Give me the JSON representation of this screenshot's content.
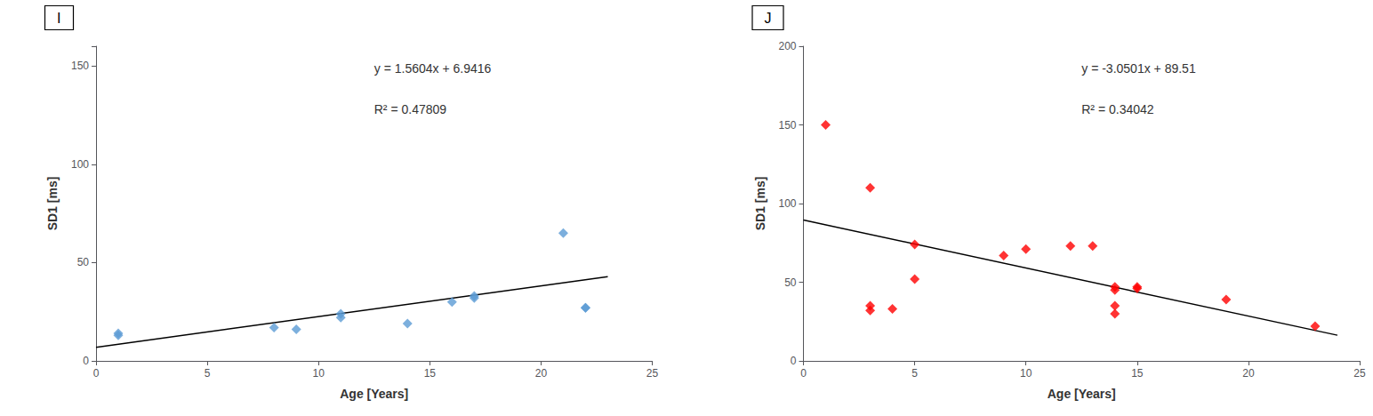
{
  "chart_data": [
    {
      "type": "scatter",
      "title": "I",
      "xlabel": "Age [Years]",
      "ylabel": "SD1 [ms]",
      "annotations": [
        "y = 1.5604x + 6.9416",
        "R² = 0.47809"
      ],
      "series": [
        {
          "type": "scatter",
          "color": "#5B9BD5",
          "marker": "diamond",
          "x": [
            1,
            1,
            8,
            9,
            11,
            11,
            14,
            16,
            17,
            17,
            21,
            22,
            22
          ],
          "values": [
            13,
            14,
            17,
            16,
            22,
            24,
            19,
            30,
            32,
            33,
            65,
            27,
            27
          ]
        },
        {
          "type": "line",
          "color": "black",
          "line_style": "solid",
          "x": [
            0,
            23
          ],
          "values": [
            6.9416,
            42.8308
          ]
        }
      ],
      "xlim": [
        0,
        25
      ],
      "ylim": [
        0,
        160
      ],
      "xticks": [
        0,
        5,
        10,
        15,
        20,
        25
      ],
      "yticks": [
        0,
        50,
        100,
        150
      ],
      "grid": false
    },
    {
      "type": "scatter",
      "title": "J",
      "xlabel": "Age [Years]",
      "ylabel": "SD1 [ms]",
      "annotations": [
        "y = -3.0501x + 89.51",
        "R² = 0.34042"
      ],
      "series": [
        {
          "type": "scatter",
          "color": "#FF0000",
          "marker": "diamond",
          "x": [
            1,
            3,
            3,
            3,
            4,
            5,
            5,
            9,
            10,
            12,
            13,
            14,
            14,
            14,
            14,
            15,
            15,
            19,
            23
          ],
          "values": [
            150,
            32,
            35,
            110,
            33,
            52,
            74,
            67,
            71,
            73,
            73,
            47,
            30,
            35,
            45,
            47,
            46,
            39,
            22
          ]
        },
        {
          "type": "line",
          "color": "black",
          "line_style": "solid",
          "x": [
            0,
            24
          ],
          "values": [
            89.51,
            16.3076
          ]
        }
      ],
      "xlim": [
        0,
        25
      ],
      "ylim": [
        0,
        200
      ],
      "xticks": [
        0,
        5,
        10,
        15,
        20,
        25
      ],
      "yticks": [
        0,
        50,
        100,
        150,
        200
      ],
      "grid": false
    }
  ]
}
